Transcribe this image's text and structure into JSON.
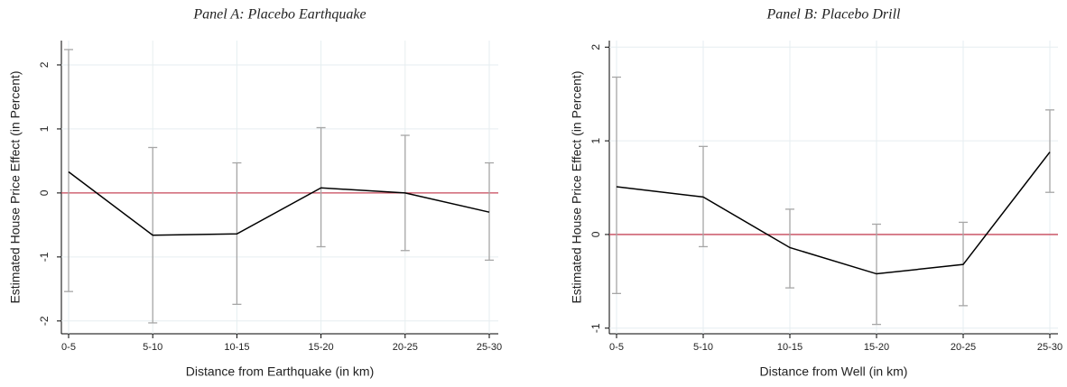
{
  "chart_data": [
    {
      "type": "line",
      "title": "Panel A: Placebo Earthquake",
      "x_label": "Distance from Earthquake (in km)",
      "y_label": "Estimated House Price Effect (in Percent)",
      "categories": [
        "0-5",
        "5-10",
        "10-15",
        "15-20",
        "20-25",
        "25-30"
      ],
      "values": [
        0.33,
        -0.66,
        -0.64,
        0.08,
        0.0,
        -0.3
      ],
      "ci_upper": [
        2.24,
        0.71,
        0.47,
        1.02,
        0.9,
        0.47
      ],
      "ci_lower": [
        -1.54,
        -2.03,
        -1.74,
        -0.84,
        -0.9,
        -1.05
      ],
      "ylim": [
        -2.2,
        2.38
      ],
      "yticks": [
        -2,
        -1,
        0,
        1,
        2
      ],
      "grid": true,
      "reference_line": 0,
      "color": "#000000",
      "ci_color": "#a6a6a6",
      "reference_color": "#c8485a"
    },
    {
      "type": "line",
      "title": "Panel B: Placebo Drill",
      "x_label": "Distance from Well (in km)",
      "y_label": "Estimated House Price Effect (in Percent)",
      "categories": [
        "0-5",
        "5-10",
        "10-15",
        "15-20",
        "20-25",
        "25-30"
      ],
      "values": [
        0.51,
        0.4,
        -0.14,
        -0.42,
        -0.32,
        0.88
      ],
      "ci_upper": [
        1.68,
        0.94,
        0.27,
        0.11,
        0.13,
        1.33
      ],
      "ci_lower": [
        -0.63,
        -0.13,
        -0.57,
        -0.96,
        -0.76,
        0.45
      ],
      "ylim": [
        -1.06,
        2.07
      ],
      "yticks": [
        -1,
        0,
        1,
        2
      ],
      "grid": true,
      "reference_line": 0,
      "color": "#000000",
      "ci_color": "#a6a6a6",
      "reference_color": "#c8485a"
    }
  ]
}
